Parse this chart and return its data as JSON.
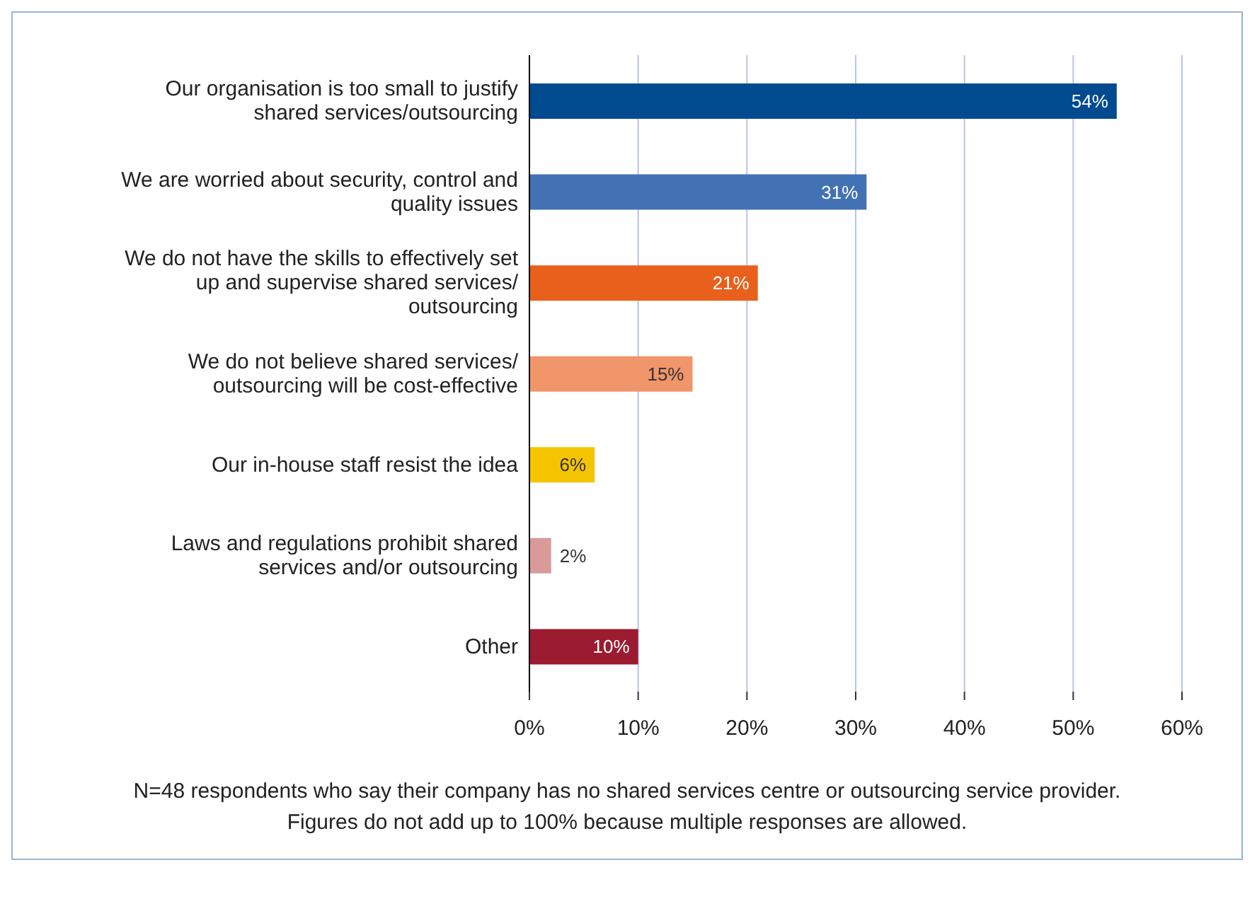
{
  "chart_data": {
    "type": "bar",
    "orientation": "horizontal",
    "categories": [
      "Our organisation is too small to justify shared services/outsourcing",
      "We are worried about security, control and quality issues",
      "We do not have the skills to effectively set up and supervise shared services/ outsourcing",
      "We do not believe shared services/ outsourcing will be cost-effective",
      "Our in-house staff resist the idea",
      "Laws and regulations prohibit shared services and/or outsourcing",
      "Other"
    ],
    "values": [
      54,
      31,
      21,
      15,
      6,
      2,
      10
    ],
    "colors": [
      "#004a8f",
      "#4272b4",
      "#e8601c",
      "#f1956a",
      "#f5c400",
      "#d99a9a",
      "#9b1b30"
    ],
    "value_labels": [
      "54%",
      "31%",
      "21%",
      "15%",
      "6%",
      "2%",
      "10%"
    ],
    "xlim": [
      0,
      60
    ],
    "xticks": [
      {
        "value": 0,
        "label": "0%"
      },
      {
        "value": 10,
        "label": "10%"
      },
      {
        "value": 20,
        "label": "20%"
      },
      {
        "value": 30,
        "label": "30%"
      },
      {
        "value": 40,
        "label": "40%"
      },
      {
        "value": 50,
        "label": "50%"
      },
      {
        "value": 60,
        "label": "60%"
      }
    ],
    "grid": "x",
    "legend": false,
    "annotations": [
      "N=48 respondents who say their company has no shared services centre or outsourcing service provider. Figures do not add up to 100% because multiple responses are allowed."
    ]
  }
}
